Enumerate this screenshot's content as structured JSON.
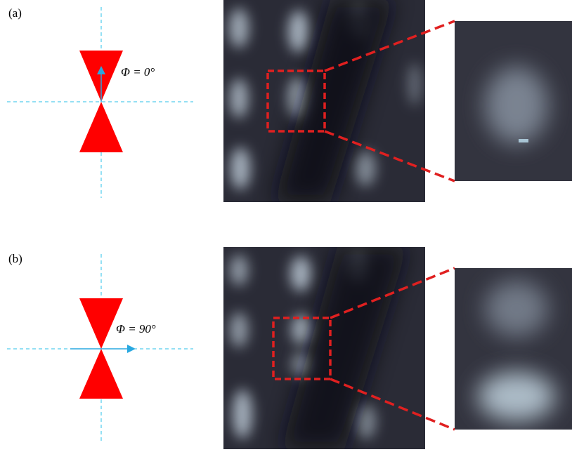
{
  "panels": [
    {
      "label": "(a)",
      "angle_label": "Φ = 0°"
    },
    {
      "label": "(b)",
      "angle_label": "Φ = 90°"
    }
  ]
}
